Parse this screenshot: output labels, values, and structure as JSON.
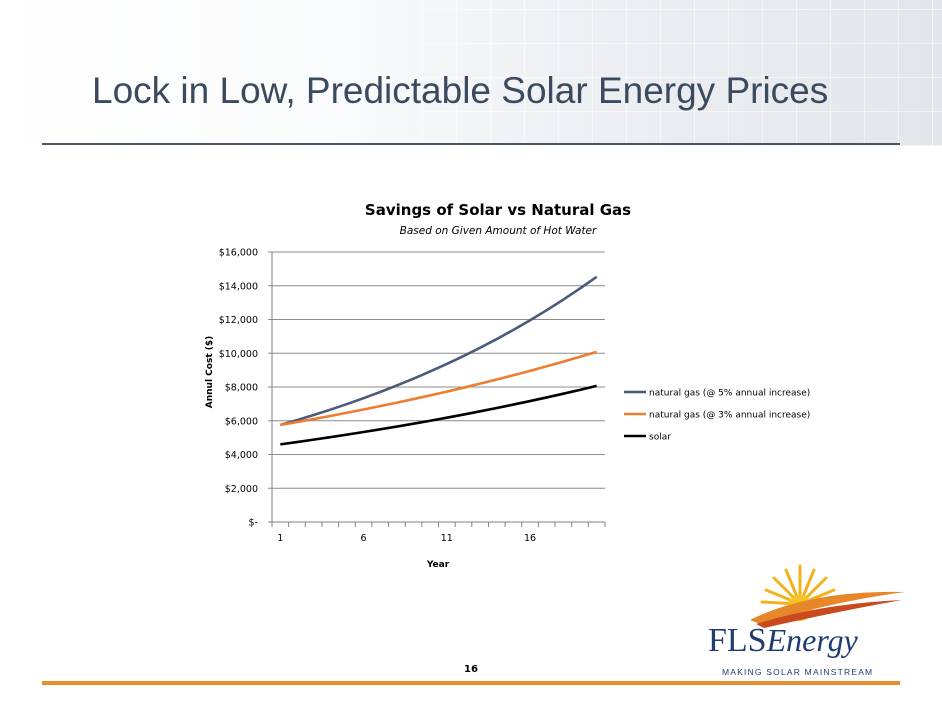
{
  "slide": {
    "title": "Lock in Low, Predictable Solar Energy Prices",
    "page_number": "16"
  },
  "logo": {
    "name_part1": "FLS",
    "name_part2": "Energy",
    "tagline": "MAKING SOLAR MAINSTREAM"
  },
  "colors": {
    "title": "#3b4a5e",
    "accent_rule": "#e98d2e",
    "brand_navy": "#1f3c73"
  },
  "chart_data": {
    "type": "line",
    "title": "Savings of Solar vs Natural Gas",
    "subtitle": "Based on Given Amount of Hot Water",
    "xlabel": "Year",
    "ylabel": "Annul Cost ($)",
    "x": [
      1,
      2,
      3,
      4,
      5,
      6,
      7,
      8,
      9,
      10,
      11,
      12,
      13,
      14,
      15,
      16,
      17,
      18,
      19,
      20
    ],
    "x_tick_labels": [
      "1",
      "6",
      "11",
      "16"
    ],
    "y_tick_labels": [
      "$-",
      "$2,000",
      "$4,000",
      "$6,000",
      "$8,000",
      "$10,000",
      "$12,000",
      "$14,000",
      "$16,000"
    ],
    "ylim": [
      0,
      16000
    ],
    "grid": "horizontal",
    "legend_position": "right",
    "series": [
      {
        "name": "natural gas (@  5% annual increase)",
        "color": "#4a5a78",
        "values": [
          5750,
          6038,
          6339,
          6656,
          6989,
          7338,
          7705,
          8091,
          8495,
          8920,
          9366,
          9834,
          10326,
          10842,
          11384,
          11954,
          12551,
          13179,
          13838,
          14530
        ]
      },
      {
        "name": "natural gas (@  3% annual increase)",
        "color": "#ed7d31",
        "values": [
          5750,
          5923,
          6100,
          6283,
          6472,
          6666,
          6866,
          7072,
          7284,
          7502,
          7727,
          7959,
          8198,
          8444,
          8697,
          8958,
          9227,
          9504,
          9789,
          10083
        ]
      },
      {
        "name": "solar",
        "color": "#000000",
        "values": [
          4600,
          4738,
          4880,
          5027,
          5177,
          5333,
          5493,
          5657,
          5827,
          6002,
          6182,
          6367,
          6559,
          6755,
          6958,
          7167,
          7382,
          7603,
          7831,
          8066
        ]
      }
    ]
  }
}
